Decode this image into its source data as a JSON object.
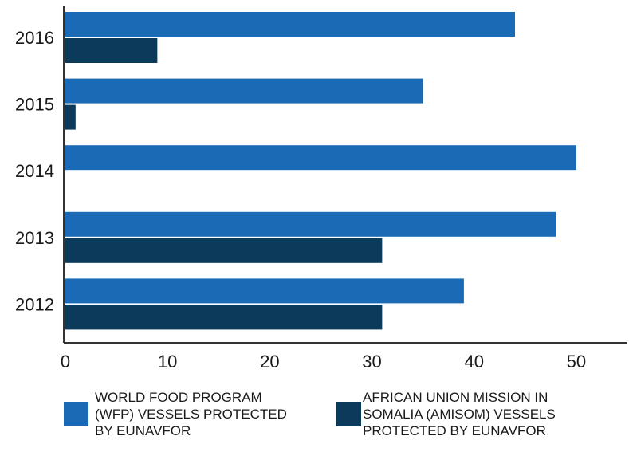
{
  "chart_data": {
    "type": "bar",
    "orientation": "horizontal",
    "categories": [
      "2016",
      "2015",
      "2014",
      "2013",
      "2012"
    ],
    "series": [
      {
        "name": "WORLD FOOD PROGRAM (WFP) VESSELS PROTECTED BY EUNAVFOR",
        "color": "#1b6ab5",
        "values": [
          44,
          35,
          50,
          48,
          39
        ]
      },
      {
        "name": "AFRICAN UNION MISSION IN SOMALIA (AMISOM) VESSELS PROTECTED BY EUNAVFOR",
        "color": "#0b3a5a",
        "values": [
          9,
          1,
          0,
          31,
          31
        ]
      }
    ],
    "x_ticks": [
      "0",
      "10",
      "20",
      "30",
      "40",
      "50"
    ],
    "xlim": [
      0,
      55
    ],
    "grid": false,
    "legend_position": "bottom"
  },
  "legend": {
    "wfp_lines": [
      "WORLD FOOD PROGRAM",
      "(WFP) VESSELS PROTECTED",
      "BY EUNAVFOR"
    ],
    "amisom_lines": [
      "AFRICAN UNION MISSION IN",
      "SOMALIA (AMISOM) VESSELS",
      "PROTECTED BY EUNAVFOR"
    ]
  }
}
